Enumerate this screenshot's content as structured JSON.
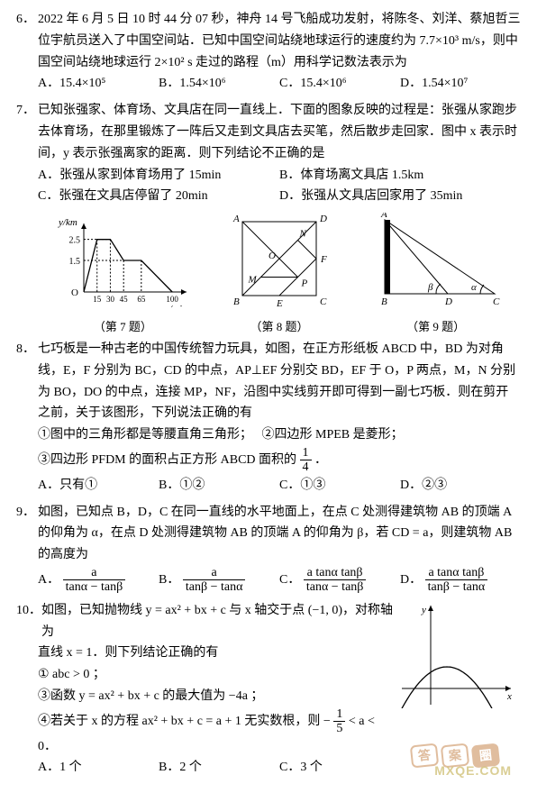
{
  "q6": {
    "num": "6．",
    "text": "2022 年 6 月 5 日 10 时 44 分 07 秒，神舟 14 号飞船成功发射，将陈冬、刘洋、蔡旭哲三位宇航员送入了中国空间站．已知中国空间站绕地球运行的速度约为 7.7×10³ m/s，则中国空间站绕地球运行 2×10² s 走过的路程（m）用科学记数法表示为",
    "A": "A．15.4×10⁵",
    "B": "B．1.54×10⁶",
    "C": "C．15.4×10⁶",
    "D": "D．1.54×10⁷"
  },
  "q7": {
    "num": "7．",
    "text": "已知张强家、体育场、文具店在同一直线上．下面的图象反映的过程是：张强从家跑步去体育场，在那里锻炼了一阵后又走到文具店去买笔，然后散步走回家．图中 x 表示时间，y 表示张强离家的距离．则下列结论不正确的是",
    "A": "A．张强从家到体育场用了 15min",
    "B": "B．体育场离文具店 1.5km",
    "C": "C．张强在文具店停留了 20min",
    "D": "D．张强从文具店回家用了 35min"
  },
  "figs": {
    "c7": "（第 7 题）",
    "c8": "（第 8 题）",
    "c9": "（第 9 题）",
    "f7": {
      "ylabel": "y/km",
      "xlabel": "x/min",
      "yticks": [
        "1.5",
        "2.5"
      ],
      "xticks": [
        "15",
        "30",
        "45",
        "65",
        "100"
      ],
      "points": [
        [
          0,
          0
        ],
        [
          15,
          25
        ],
        [
          30,
          25
        ],
        [
          45,
          15
        ],
        [
          65,
          15
        ],
        [
          100,
          0
        ]
      ],
      "xrange": 110,
      "yrange": 30,
      "axis_color": "#000",
      "line_color": "#000",
      "dash_color": "#000"
    },
    "f8": {
      "labels": {
        "A": "A",
        "B": "B",
        "C": "C",
        "D": "D",
        "E": "E",
        "F": "F",
        "M": "M",
        "N": "N",
        "O": "O",
        "P": "P"
      }
    },
    "f9": {
      "labels": {
        "A": "A",
        "B": "B",
        "C": "C",
        "D": "D",
        "alpha": "α",
        "beta": "β"
      },
      "fill": "#000"
    }
  },
  "q8": {
    "num": "8．",
    "text": "七巧板是一种古老的中国传统智力玩具，如图，在正方形纸板 ABCD 中，BD 为对角线，E，F 分别为 BC，CD 的中点，AP⊥EF 分别交 BD，EF 于 O，P 两点，M，N 分别为 BO，DO 的中点，连接 MP，NF，沿图中实线剪开即可得到一副七巧板．则在剪开之前，关于该图形，下列说法正确的有",
    "s1": "①图中的三角形都是等腰直角三角形；",
    "s2": "②四边形 MPEB 是菱形；",
    "s3a": "③四边形 PFDM 的面积占正方形 ABCD 面积的 ",
    "s3f_n": "1",
    "s3f_d": "4",
    "s3b": "．",
    "A": "A．只有①",
    "B": "B．①②",
    "C": "C．①③",
    "D": "D．②③"
  },
  "q9": {
    "num": "9．",
    "text": "如图，已知点 B，D，C 在同一直线的水平地面上，在点 C 处测得建筑物 AB 的顶端 A 的仰角为 α，在点 D 处测得建筑物 AB 的顶端 A 的仰角为 β，若 CD = a，则建筑物 AB 的高度为",
    "A": {
      "label": "A．",
      "num": "a",
      "den": "tanα − tanβ"
    },
    "B": {
      "label": "B．",
      "num": "a",
      "den": "tanβ − tanα"
    },
    "C": {
      "label": "C．",
      "num": "a tanα tanβ",
      "den": "tanα − tanβ"
    },
    "D": {
      "label": "D．",
      "num": "a tanα tanβ",
      "den": "tanβ − tanα"
    }
  },
  "q10": {
    "num": "10．",
    "text": "如图，已知抛物线 y = ax² + bx + c 与 x 轴交于点 (−1, 0)，对称轴为",
    "text2": "直线 x = 1．则下列结论正确的有",
    "s1": "① abc > 0 ；",
    "s2": "③函数 y = ax² + bx + c 的最大值为 −4a ；",
    "s4a": "④若关于 x 的方程 ax² + bx + c = a + 1 无实数根，则 −",
    "s4f_n": "1",
    "s4f_d": "5",
    "s4b": " < a < 0．",
    "A": "A．1 个",
    "B": "B．2 个",
    "C": "C．3 个",
    "fig": {
      "xlabel": "x",
      "ylabel": "y",
      "curve_color": "#000",
      "axis_color": "#000"
    }
  },
  "wm": {
    "box1": "答",
    "box2": "案",
    "box3": "圈",
    "text": "MXQE.COM"
  }
}
